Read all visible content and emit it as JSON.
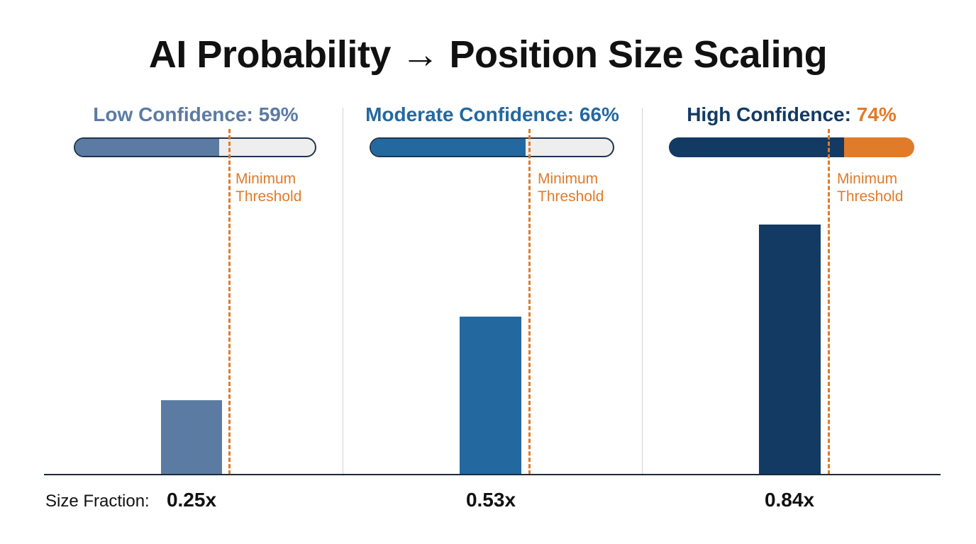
{
  "title": "AI Probability → Position Size Scaling",
  "size_fraction_label": "Size Fraction:",
  "threshold_label": "Minimum\nThreshold",
  "colors": {
    "low": "#5b7ba3",
    "moderate": "#2468a0",
    "high": "#123a63",
    "threshold": "#e07b2a",
    "track": "#eeeeee"
  },
  "chart_data": {
    "type": "bar",
    "categories": [
      "Low Confidence",
      "Moderate Confidence",
      "High Confidence"
    ],
    "probability_percent": [
      59,
      66,
      74
    ],
    "probability_labels": [
      "59%",
      "66%",
      "74%"
    ],
    "values": [
      0.25,
      0.53,
      0.84
    ],
    "value_labels": [
      "0.25x",
      "0.53x",
      "0.84x"
    ],
    "ylim": [
      0,
      1.0
    ],
    "legend": "none",
    "grid": false
  }
}
